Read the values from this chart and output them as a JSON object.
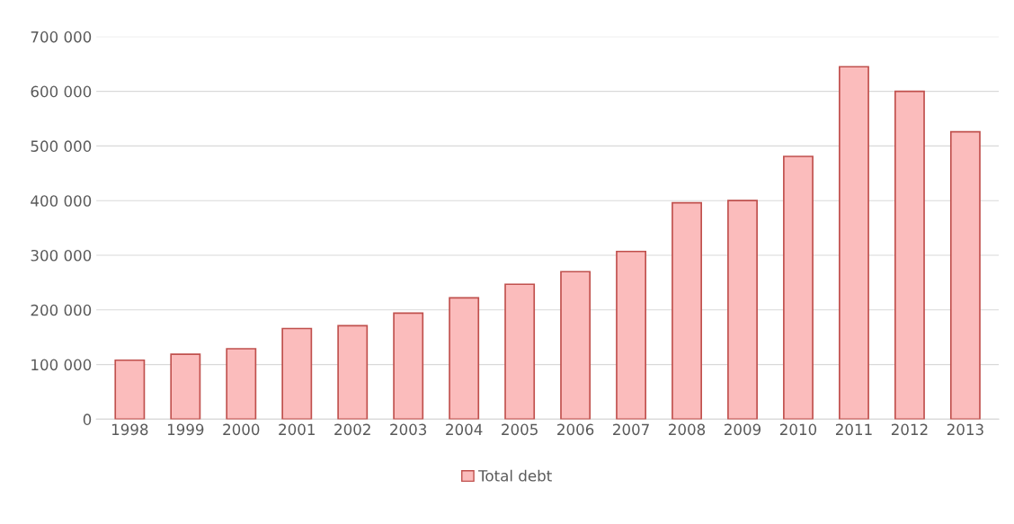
{
  "chart_data": {
    "type": "bar",
    "categories": [
      "1998",
      "1999",
      "2000",
      "2001",
      "2002",
      "2003",
      "2004",
      "2005",
      "2006",
      "2007",
      "2008",
      "2009",
      "2010",
      "2011",
      "2012",
      "2013"
    ],
    "series": [
      {
        "name": "Total debt",
        "color": "#fbbcbc",
        "values": [
          108000,
          119000,
          129000,
          166000,
          171000,
          194000,
          222000,
          247000,
          270000,
          307000,
          396000,
          400000,
          481000,
          645000,
          600000,
          526000
        ]
      }
    ],
    "ylim": [
      0,
      700000
    ],
    "yticks": [
      {
        "value": 0,
        "label": "0"
      },
      {
        "value": 100000,
        "label": "100 000"
      },
      {
        "value": 200000,
        "label": "200 000"
      },
      {
        "value": 300000,
        "label": "300 000"
      },
      {
        "value": 400000,
        "label": "400 000"
      },
      {
        "value": 500000,
        "label": "500 000"
      },
      {
        "value": 600000,
        "label": "600 000"
      },
      {
        "value": 700000,
        "label": "700 000"
      }
    ],
    "grid": "y",
    "legend": "bottom"
  }
}
